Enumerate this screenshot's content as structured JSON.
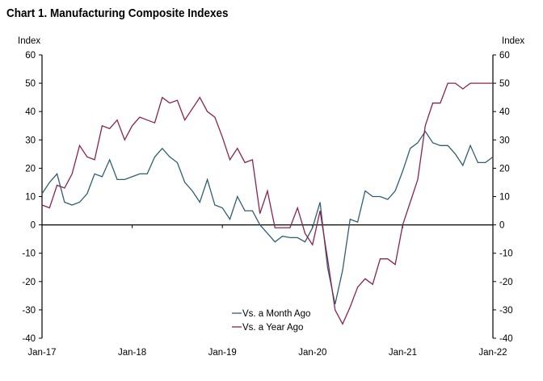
{
  "chart_data": {
    "type": "line",
    "title": "Chart 1. Manufacturing Composite Indexes",
    "ylabel_left": "Index",
    "ylabel_right": "Index",
    "ylim": [
      -40,
      60
    ],
    "yticks": [
      -40,
      -30,
      -20,
      -10,
      0,
      10,
      20,
      30,
      40,
      50,
      60
    ],
    "xtick_labels": [
      "Jan-17",
      "Jan-18",
      "Jan-19",
      "Jan-20",
      "Jan-21",
      "Jan-22"
    ],
    "x_start": "Jan-17",
    "x_end": "Jan-22",
    "frequency": "monthly",
    "grid": false,
    "legend_position": "bottom-center",
    "series": [
      {
        "name": "Vs. a Month Ago",
        "color": "#2e5f74",
        "values": [
          11,
          15,
          18,
          8,
          7,
          8,
          11,
          18,
          17,
          23,
          16,
          16,
          17,
          18,
          18,
          24,
          27,
          24,
          22,
          15,
          12,
          8,
          16,
          7,
          6,
          2,
          10,
          5,
          5,
          0,
          -3,
          -6,
          -4,
          -4.5,
          -4.5,
          -6,
          -1,
          8,
          -15,
          -28,
          -16,
          2,
          1,
          12,
          10,
          10,
          9,
          12,
          19,
          27,
          29,
          33,
          29,
          28,
          28,
          25,
          21,
          28,
          22,
          22,
          24
        ]
      },
      {
        "name": "Vs. a Year Ago",
        "color": "#8b2252",
        "values": [
          7,
          6,
          14,
          13,
          18,
          28,
          24,
          23,
          35,
          34,
          37,
          30,
          35,
          38,
          37,
          36,
          45,
          43,
          44,
          37,
          41,
          45,
          40,
          38,
          31,
          23,
          27,
          22,
          23,
          4,
          12,
          -1,
          -1,
          -1,
          6,
          -3,
          -7,
          5,
          -12,
          -30,
          -35,
          -29,
          -22,
          -19,
          -21,
          -12,
          -12,
          -14,
          0,
          8,
          16,
          35,
          43,
          43,
          50,
          50,
          48,
          50,
          50,
          50,
          50
        ]
      }
    ]
  }
}
